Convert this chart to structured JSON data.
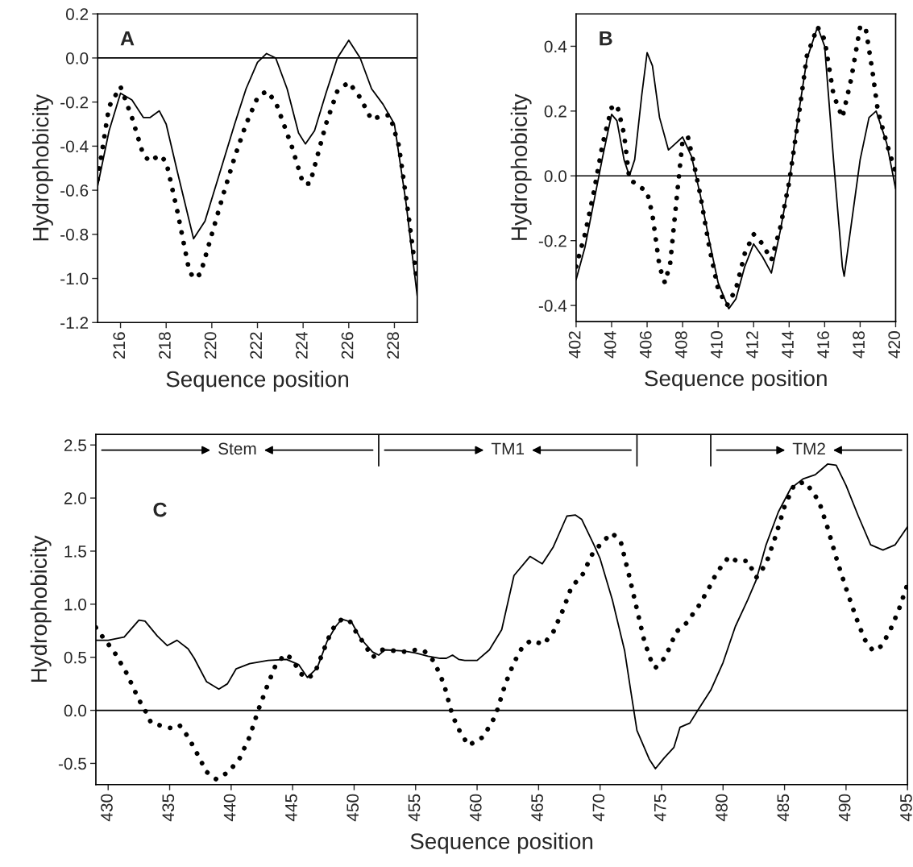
{
  "chart_data": [
    {
      "type": "line",
      "annotations": [
        "A"
      ],
      "xlabel": "Sequence position",
      "ylabel": "Hydrophobicity",
      "xlim": [
        215,
        229
      ],
      "xticks": [
        216,
        218,
        220,
        222,
        224,
        226,
        228
      ],
      "ylim": [
        -1.2,
        0.2
      ],
      "yticks": [
        {
          "value": -1.2,
          "label": "-1.2"
        },
        {
          "value": -1.0,
          "label": "-1.0"
        },
        {
          "value": -0.8,
          "label": "-0.8"
        },
        {
          "value": -0.6,
          "label": "-0.6"
        },
        {
          "value": -0.4,
          "label": "-0.4"
        },
        {
          "value": -0.2,
          "label": "-0.2"
        },
        {
          "value": 0,
          "label": "0.0"
        },
        {
          "value": 0.2,
          "label": "0.2"
        }
      ],
      "ref_lines": [
        {
          "axis": "y",
          "value": 0
        }
      ],
      "series": [
        {
          "color": "#000000",
          "line_style": "solid",
          "x": [
            215,
            215.5,
            216,
            216.5,
            217,
            217.3,
            217.7,
            218,
            218.5,
            219.2,
            219.7,
            220.5,
            221,
            221.5,
            222,
            222.4,
            222.8,
            223.3,
            223.8,
            224.1,
            224.5,
            225,
            225.5,
            226,
            226.5,
            227,
            227.5,
            228,
            228.5,
            229
          ],
          "values": [
            -0.58,
            -0.33,
            -0.16,
            -0.19,
            -0.27,
            -0.27,
            -0.24,
            -0.3,
            -0.52,
            -0.82,
            -0.74,
            -0.47,
            -0.3,
            -0.14,
            -0.02,
            0.02,
            0.0,
            -0.14,
            -0.34,
            -0.39,
            -0.33,
            -0.16,
            0.0,
            0.08,
            0.0,
            -0.14,
            -0.21,
            -0.3,
            -0.65,
            -1.08
          ]
        },
        {
          "color": "#000000",
          "line_style": "dotted",
          "x": [
            215,
            215.5,
            216,
            216.5,
            217,
            217.3,
            217.7,
            218,
            218.5,
            219,
            219.2,
            219.5,
            220,
            220.5,
            221,
            221.5,
            222,
            222.4,
            222.8,
            223.5,
            224,
            224.3,
            225,
            225.5,
            226,
            226.5,
            227,
            227.5,
            227.8,
            228.2,
            228.6,
            229
          ],
          "values": [
            -0.55,
            -0.22,
            -0.13,
            -0.27,
            -0.44,
            -0.47,
            -0.44,
            -0.47,
            -0.7,
            -0.96,
            -1.0,
            -0.98,
            -0.8,
            -0.62,
            -0.45,
            -0.3,
            -0.18,
            -0.15,
            -0.2,
            -0.4,
            -0.57,
            -0.57,
            -0.3,
            -0.15,
            -0.11,
            -0.18,
            -0.28,
            -0.26,
            -0.26,
            -0.4,
            -0.7,
            -1.02
          ]
        }
      ]
    },
    {
      "type": "line",
      "annotations": [
        "B"
      ],
      "xlabel": "Sequence position",
      "ylabel": "Hydrophobicity",
      "xlim": [
        402,
        420
      ],
      "xticks": [
        402,
        404,
        406,
        408,
        410,
        412,
        414,
        416,
        418,
        420
      ],
      "ylim": [
        -0.45,
        0.5
      ],
      "yticks": [
        {
          "value": -0.4,
          "label": "-0.4"
        },
        {
          "value": -0.2,
          "label": "-0.2"
        },
        {
          "value": 0,
          "label": "0.0"
        },
        {
          "value": 0.2,
          "label": "0.2"
        },
        {
          "value": 0.4,
          "label": "0.4"
        }
      ],
      "ref_lines": [
        {
          "axis": "y",
          "value": 0
        }
      ],
      "series": [
        {
          "color": "#000000",
          "line_style": "solid",
          "x": [
            402,
            402.5,
            403,
            403.5,
            404,
            404.3,
            404.7,
            405,
            405.3,
            405.7,
            406,
            406.3,
            406.7,
            407.2,
            407.6,
            408,
            408.5,
            409,
            409.5,
            410,
            410.6,
            411,
            411.5,
            412,
            412.5,
            413,
            413.5,
            414,
            414.5,
            415,
            415.6,
            416,
            416.5,
            417,
            417.1,
            417.5,
            418,
            418.5,
            418.9,
            419.5,
            420
          ],
          "values": [
            -0.32,
            -0.22,
            -0.08,
            0.06,
            0.19,
            0.17,
            0.05,
            0.0,
            0.05,
            0.25,
            0.38,
            0.34,
            0.18,
            0.08,
            0.1,
            0.12,
            0.06,
            -0.06,
            -0.2,
            -0.33,
            -0.41,
            -0.38,
            -0.28,
            -0.21,
            -0.25,
            -0.3,
            -0.17,
            -0.02,
            0.18,
            0.36,
            0.46,
            0.4,
            0.05,
            -0.28,
            -0.31,
            -0.15,
            0.05,
            0.18,
            0.2,
            0.1,
            -0.04
          ]
        },
        {
          "color": "#000000",
          "line_style": "dotted",
          "x": [
            402,
            402.5,
            403,
            403.5,
            404,
            404.3,
            404.7,
            405,
            405.5,
            406,
            406.3,
            406.7,
            407,
            407.3,
            407.7,
            408,
            408.3,
            408.7,
            409,
            409.5,
            410,
            410.5,
            411,
            411.5,
            412,
            412.5,
            413,
            413.5,
            414,
            414.5,
            415,
            415.6,
            416,
            416.5,
            417,
            417.5,
            418,
            418.3,
            418.7,
            419,
            419.5,
            420
          ],
          "values": [
            -0.28,
            -0.18,
            -0.05,
            0.1,
            0.21,
            0.22,
            0.13,
            -0.01,
            -0.03,
            -0.05,
            -0.12,
            -0.28,
            -0.33,
            -0.27,
            -0.05,
            0.11,
            0.12,
            0.02,
            -0.06,
            -0.22,
            -0.35,
            -0.4,
            -0.35,
            -0.24,
            -0.18,
            -0.21,
            -0.26,
            -0.16,
            -0.02,
            0.17,
            0.37,
            0.46,
            0.42,
            0.25,
            0.18,
            0.3,
            0.46,
            0.46,
            0.32,
            0.2,
            0.1,
            0.01
          ]
        }
      ]
    },
    {
      "type": "line",
      "annotations": [
        "C",
        "Stem",
        "TM1",
        "TM2"
      ],
      "xlabel": "Sequence position",
      "ylabel": "Hydrophobicity",
      "xlim": [
        429,
        495
      ],
      "xticks": [
        430,
        435,
        440,
        445,
        450,
        455,
        460,
        465,
        470,
        475,
        480,
        485,
        490,
        495
      ],
      "ylim": [
        -0.7,
        2.6
      ],
      "yticks": [
        {
          "value": -0.5,
          "label": "-0.5"
        },
        {
          "value": 0,
          "label": "0.0"
        },
        {
          "value": 0.5,
          "label": "0.5"
        },
        {
          "value": 1.0,
          "label": "1.0"
        },
        {
          "value": 1.5,
          "label": "1.5"
        },
        {
          "value": 2.0,
          "label": "2.0"
        },
        {
          "value": 2.5,
          "label": "2.5"
        }
      ],
      "ref_lines": [
        {
          "axis": "y",
          "value": 0
        },
        {
          "axis": "x",
          "value": 452
        },
        {
          "axis": "x",
          "value": 473
        },
        {
          "axis": "x",
          "value": 479
        }
      ],
      "series": [
        {
          "color": "#000000",
          "line_style": "solid",
          "x": [
            429,
            430,
            431.3,
            432.5,
            433,
            434,
            434.8,
            435.6,
            436.5,
            437,
            438,
            439,
            439.7,
            440.4,
            441.5,
            443,
            444.5,
            445.5,
            446.2,
            447,
            447.8,
            448.5,
            449,
            449.8,
            450.5,
            451.5,
            452,
            452.5,
            454,
            455,
            456,
            457,
            457.5,
            458,
            458.5,
            459,
            460,
            461,
            462,
            463,
            464.3,
            465.3,
            466.2,
            467.3,
            468,
            468.5,
            469.5,
            470,
            471,
            472,
            472.5,
            473,
            474,
            474.5,
            475.2,
            476,
            476.5,
            477.3,
            478,
            479,
            480,
            481,
            482,
            482.7,
            483.5,
            484.5,
            485.5,
            486.5,
            487.5,
            488.5,
            489.2,
            490,
            491,
            492,
            493,
            494,
            495
          ],
          "values": [
            0.66,
            0.66,
            0.69,
            0.85,
            0.84,
            0.7,
            0.61,
            0.66,
            0.58,
            0.49,
            0.27,
            0.2,
            0.25,
            0.39,
            0.44,
            0.47,
            0.48,
            0.43,
            0.31,
            0.4,
            0.65,
            0.79,
            0.86,
            0.83,
            0.68,
            0.55,
            0.52,
            0.57,
            0.56,
            0.54,
            0.51,
            0.49,
            0.49,
            0.52,
            0.48,
            0.47,
            0.47,
            0.57,
            0.76,
            1.27,
            1.45,
            1.38,
            1.54,
            1.83,
            1.84,
            1.8,
            1.56,
            1.43,
            1.04,
            0.56,
            0.18,
            -0.19,
            -0.46,
            -0.55,
            -0.45,
            -0.35,
            -0.16,
            -0.12,
            0.01,
            0.19,
            0.45,
            0.79,
            1.04,
            1.23,
            1.56,
            1.87,
            2.09,
            2.18,
            2.22,
            2.32,
            2.31,
            2.12,
            1.83,
            1.56,
            1.51,
            1.56,
            1.73
          ]
        },
        {
          "color": "#000000",
          "line_style": "dotted",
          "x": [
            429,
            429.5,
            430.5,
            431.5,
            432.5,
            433,
            433.5,
            434.5,
            435.2,
            435.8,
            436.5,
            437.2,
            438,
            438.8,
            439.8,
            440.7,
            441.5,
            442.2,
            443,
            443.6,
            444.4,
            445,
            445.6,
            446.2,
            446.8,
            447.5,
            448.2,
            449,
            449.6,
            450.2,
            450.8,
            451.5,
            452.3,
            453.5,
            454.3,
            455,
            455.7,
            456.5,
            457.3,
            458,
            458.6,
            459.3,
            460.5,
            461.5,
            462.3,
            463,
            463.7,
            464.4,
            465.4,
            466.2,
            467,
            467.7,
            468.5,
            469.4,
            470.3,
            471,
            471.7,
            472.4,
            473,
            473.6,
            474.2,
            474.5,
            475.3,
            476.2,
            477,
            478,
            478.8,
            479.5,
            480.5,
            481.2,
            482,
            482.7,
            483.5,
            484.3,
            485,
            485.8,
            486.7,
            487.2,
            487.8,
            488.5,
            489.3,
            490,
            490.8,
            491.5,
            492.2,
            492.8,
            493.5,
            494.3,
            495
          ],
          "values": [
            0.78,
            0.7,
            0.55,
            0.35,
            0.1,
            0.0,
            -0.12,
            -0.15,
            -0.17,
            -0.14,
            -0.25,
            -0.4,
            -0.58,
            -0.65,
            -0.58,
            -0.45,
            -0.25,
            0.0,
            0.25,
            0.42,
            0.53,
            0.48,
            0.35,
            0.3,
            0.35,
            0.56,
            0.76,
            0.86,
            0.85,
            0.73,
            0.63,
            0.5,
            0.57,
            0.56,
            0.55,
            0.57,
            0.56,
            0.46,
            0.25,
            -0.05,
            -0.2,
            -0.33,
            -0.25,
            -0.05,
            0.25,
            0.45,
            0.6,
            0.66,
            0.62,
            0.74,
            0.95,
            1.17,
            1.26,
            1.48,
            1.6,
            1.67,
            1.58,
            1.25,
            0.95,
            0.65,
            0.45,
            0.4,
            0.5,
            0.74,
            0.82,
            0.98,
            1.14,
            1.3,
            1.45,
            1.4,
            1.41,
            1.25,
            1.38,
            1.65,
            1.92,
            2.13,
            2.15,
            2.07,
            1.97,
            1.72,
            1.4,
            1.15,
            0.88,
            0.67,
            0.56,
            0.6,
            0.73,
            0.95,
            1.19
          ]
        }
      ]
    }
  ]
}
